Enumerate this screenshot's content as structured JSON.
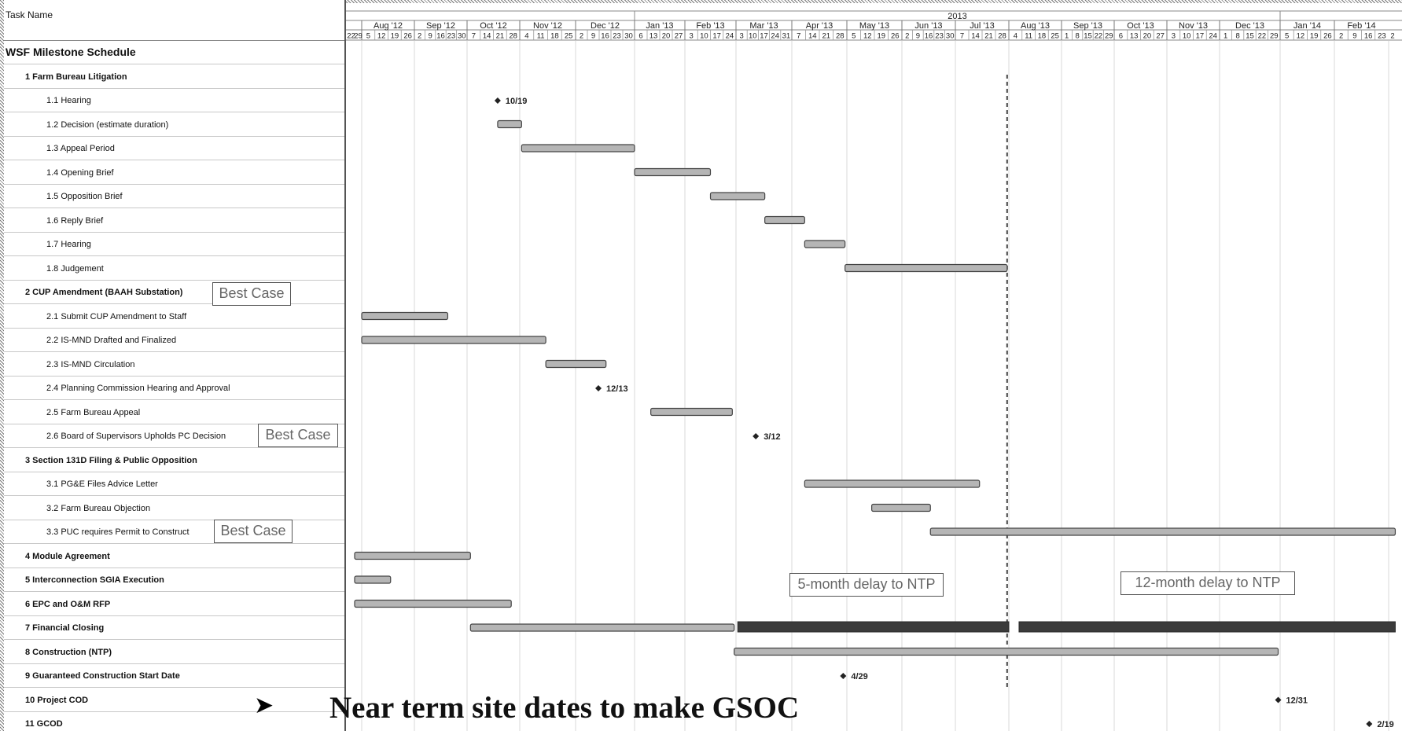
{
  "header": {
    "task_col_title": "Task Name",
    "year_label": "2013",
    "months": [
      "Aug '12",
      "Sep '12",
      "Oct '12",
      "Nov '12",
      "Dec '12",
      "Jan '13",
      "Feb '13",
      "Mar '13",
      "Apr '13",
      "May '13",
      "Jun '13",
      "Jul '13",
      "Aug '13",
      "Sep '13",
      "Oct '13",
      "Nov '13",
      "Dec '13",
      "Jan '14",
      "Feb '14"
    ],
    "pre_weeks": [
      "22",
      "29"
    ],
    "weeks": [
      [
        "5",
        "12",
        "19",
        "26"
      ],
      [
        "2",
        "9",
        "16",
        "23",
        "30"
      ],
      [
        "7",
        "14",
        "21",
        "28"
      ],
      [
        "4",
        "11",
        "18",
        "25"
      ],
      [
        "2",
        "9",
        "16",
        "23",
        "30"
      ],
      [
        "6",
        "13",
        "20",
        "27"
      ],
      [
        "3",
        "10",
        "17",
        "24"
      ],
      [
        "3",
        "10",
        "17",
        "24",
        "31"
      ],
      [
        "7",
        "14",
        "21",
        "28"
      ],
      [
        "5",
        "12",
        "19",
        "26"
      ],
      [
        "2",
        "9",
        "16",
        "23",
        "30"
      ],
      [
        "7",
        "14",
        "21",
        "28"
      ],
      [
        "4",
        "11",
        "18",
        "25"
      ],
      [
        "1",
        "8",
        "15",
        "22",
        "29"
      ],
      [
        "6",
        "13",
        "20",
        "27"
      ],
      [
        "3",
        "10",
        "17",
        "24"
      ],
      [
        "1",
        "8",
        "15",
        "22",
        "29"
      ],
      [
        "5",
        "12",
        "19",
        "26"
      ],
      [
        "2",
        "9",
        "16",
        "23"
      ]
    ],
    "post_weeks": [
      "2"
    ]
  },
  "tasks": [
    {
      "name": "WSF Milestone Schedule",
      "level": 0
    },
    {
      "name": "1 Farm Bureau Litigation",
      "level": 1
    },
    {
      "name": "1.1 Hearing",
      "level": 2
    },
    {
      "name": "1.2 Decision (estimate duration)",
      "level": 2
    },
    {
      "name": "1.3 Appeal Period",
      "level": 2
    },
    {
      "name": "1.4 Opening Brief",
      "level": 2
    },
    {
      "name": "1.5 Opposition Brief",
      "level": 2
    },
    {
      "name": "1.6 Reply Brief",
      "level": 2
    },
    {
      "name": "1.7 Hearing",
      "level": 2
    },
    {
      "name": "1.8 Judgement",
      "level": 2
    },
    {
      "name": "2 CUP Amendment (BAAH Substation)",
      "level": 1
    },
    {
      "name": "2.1 Submit CUP Amendment to Staff",
      "level": 2
    },
    {
      "name": "2.2 IS-MND Drafted and Finalized",
      "level": 2
    },
    {
      "name": "2.3 IS-MND Circulation",
      "level": 2
    },
    {
      "name": "2.4 Planning Commission Hearing and Approval",
      "level": 2
    },
    {
      "name": "2.5 Farm Bureau Appeal",
      "level": 2
    },
    {
      "name": "2.6 Board of Supervisors Upholds PC Decision",
      "level": 2
    },
    {
      "name": "3 Section 131D Filing & Public Opposition",
      "level": 1
    },
    {
      "name": "3.1 PG&E Files Advice Letter",
      "level": 2
    },
    {
      "name": "3.2 Farm Bureau Objection",
      "level": 2
    },
    {
      "name": "3.3 PUC requires Permit to Construct",
      "level": 2
    },
    {
      "name": "4 Module Agreement",
      "level": 1
    },
    {
      "name": "5 Interconnection SGIA Execution",
      "level": 1
    },
    {
      "name": "6 EPC and O&M RFP",
      "level": 1
    },
    {
      "name": "7 Financial Closing",
      "level": 1
    },
    {
      "name": "8 Construction (NTP)",
      "level": 1
    },
    {
      "name": "9 Guaranteed Construction Start Date",
      "level": 1
    },
    {
      "name": "10 Project COD",
      "level": 1
    },
    {
      "name": "11 GCOD",
      "level": 1
    }
  ],
  "callouts": {
    "best_case_1": "Best Case",
    "best_case_2": "Best Case",
    "best_case_3": "Best Case",
    "delay_5": "5-month delay to NTP",
    "delay_12": "12-month delay to NTP"
  },
  "gantt": {
    "bars": [
      {
        "row": 3,
        "start": "2012-10-19",
        "end": "2012-11-02"
      },
      {
        "row": 4,
        "start": "2012-11-02",
        "end": "2013-01-01"
      },
      {
        "row": 5,
        "start": "2013-01-01",
        "end": "2013-02-15"
      },
      {
        "row": 6,
        "start": "2013-02-15",
        "end": "2013-03-17"
      },
      {
        "row": 7,
        "start": "2013-03-17",
        "end": "2013-04-08"
      },
      {
        "row": 8,
        "start": "2013-04-08",
        "end": "2013-04-30"
      },
      {
        "row": 9,
        "start": "2013-04-30",
        "end": "2013-07-31"
      },
      {
        "row": 11,
        "start": "2012-08-01",
        "end": "2012-09-20"
      },
      {
        "row": 12,
        "start": "2012-08-01",
        "end": "2012-11-15"
      },
      {
        "row": 13,
        "start": "2012-11-15",
        "end": "2012-12-17"
      },
      {
        "row": 15,
        "start": "2013-01-11",
        "end": "2013-02-27"
      },
      {
        "row": 18,
        "start": "2013-04-08",
        "end": "2013-07-15"
      },
      {
        "row": 19,
        "start": "2013-05-15",
        "end": "2013-06-17"
      },
      {
        "row": 20,
        "start": "2013-06-17",
        "end": "2014-03-05"
      },
      {
        "row": 21,
        "start": "2012-07-27",
        "end": "2012-10-03"
      },
      {
        "row": 22,
        "start": "2012-07-27",
        "end": "2012-08-18"
      },
      {
        "row": 23,
        "start": "2012-07-27",
        "end": "2012-10-27"
      },
      {
        "row": 24,
        "start": "2012-10-03",
        "end": "2013-02-28"
      },
      {
        "row": 25,
        "start": "2013-02-28",
        "end": "2013-12-31"
      }
    ],
    "delay_bars": [
      {
        "row": 24,
        "start": "2013-03-02",
        "end": "2013-08-01"
      },
      {
        "row": 24,
        "start": "2013-08-07",
        "end": "2014-03-05"
      }
    ],
    "milestones": [
      {
        "row": 2,
        "date": "2012-10-19",
        "label": "10/19"
      },
      {
        "row": 14,
        "date": "2012-12-13",
        "label": "12/13"
      },
      {
        "row": 16,
        "date": "2013-03-12",
        "label": "3/12"
      },
      {
        "row": 26,
        "date": "2013-04-29",
        "label": "4/29"
      },
      {
        "row": 27,
        "date": "2013-12-31",
        "label": "12/31"
      },
      {
        "row": 28,
        "date": "2014-02-19",
        "label": "2/19"
      }
    ],
    "deadline_date": "2013-07-31"
  },
  "footer": {
    "statement": "Near term site dates  to make GSOC"
  }
}
